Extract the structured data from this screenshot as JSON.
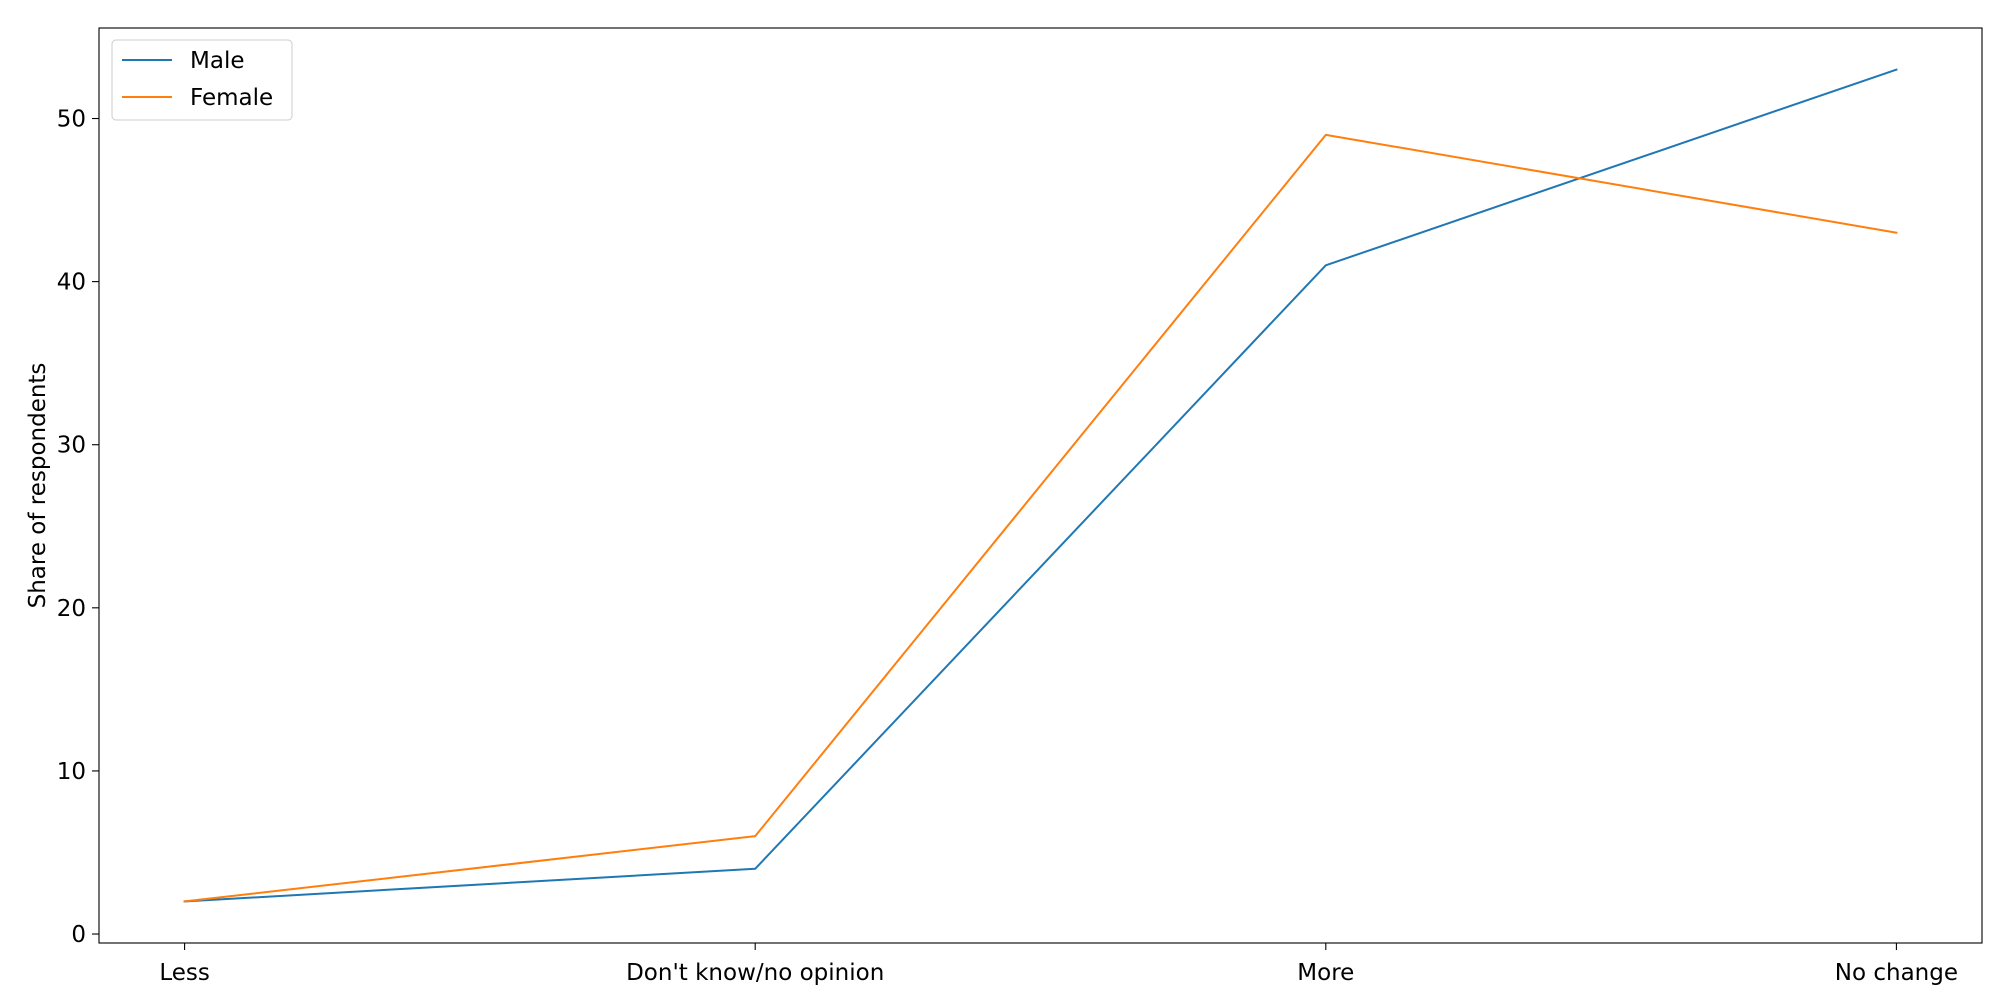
{
  "chart_data": {
    "type": "line",
    "categories": [
      "Less",
      "Don't know/no opinion",
      "More",
      "No change"
    ],
    "series": [
      {
        "name": "Male",
        "values": [
          2,
          4,
          41,
          53
        ],
        "color": "#1f77b4"
      },
      {
        "name": "Female",
        "values": [
          2,
          6,
          49,
          43
        ],
        "color": "#ff7f0e"
      }
    ],
    "title": "",
    "xlabel": "",
    "ylabel": "Share of respondents",
    "ylim": [
      -0.55,
      55.55
    ],
    "yticks": [
      0,
      10,
      20,
      30,
      40,
      50
    ],
    "grid": false,
    "legend_position": "top-left"
  }
}
